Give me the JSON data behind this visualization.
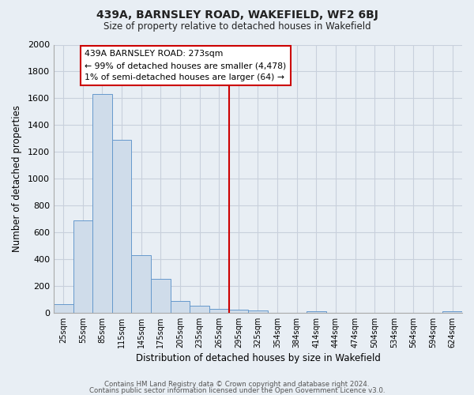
{
  "title": "439A, BARNSLEY ROAD, WAKEFIELD, WF2 6BJ",
  "subtitle": "Size of property relative to detached houses in Wakefield",
  "xlabel": "Distribution of detached houses by size in Wakefield",
  "ylabel": "Number of detached properties",
  "footer_lines": [
    "Contains HM Land Registry data © Crown copyright and database right 2024.",
    "Contains public sector information licensed under the Open Government Licence v3.0."
  ],
  "bin_labels": [
    "25sqm",
    "55sqm",
    "85sqm",
    "115sqm",
    "145sqm",
    "175sqm",
    "205sqm",
    "235sqm",
    "265sqm",
    "295sqm",
    "325sqm",
    "354sqm",
    "384sqm",
    "414sqm",
    "444sqm",
    "474sqm",
    "504sqm",
    "534sqm",
    "564sqm",
    "594sqm",
    "624sqm"
  ],
  "bar_heights": [
    65,
    690,
    1630,
    1290,
    430,
    255,
    90,
    50,
    30,
    20,
    15,
    0,
    0,
    10,
    0,
    0,
    0,
    0,
    0,
    0,
    10
  ],
  "bar_color": "#cfdcea",
  "bar_edge_color": "#6699cc",
  "vline_x": 8.5,
  "vline_color": "#cc0000",
  "ylim": [
    0,
    2000
  ],
  "yticks": [
    0,
    200,
    400,
    600,
    800,
    1000,
    1200,
    1400,
    1600,
    1800,
    2000
  ],
  "annotation_title": "439A BARNSLEY ROAD: 273sqm",
  "annotation_line1": "← 99% of detached houses are smaller (4,478)",
  "annotation_line2": "1% of semi-detached houses are larger (64) →",
  "bg_color": "#e8eef4",
  "grid_color": "#c8d0dc",
  "plot_bg_color": "#e8eef4"
}
